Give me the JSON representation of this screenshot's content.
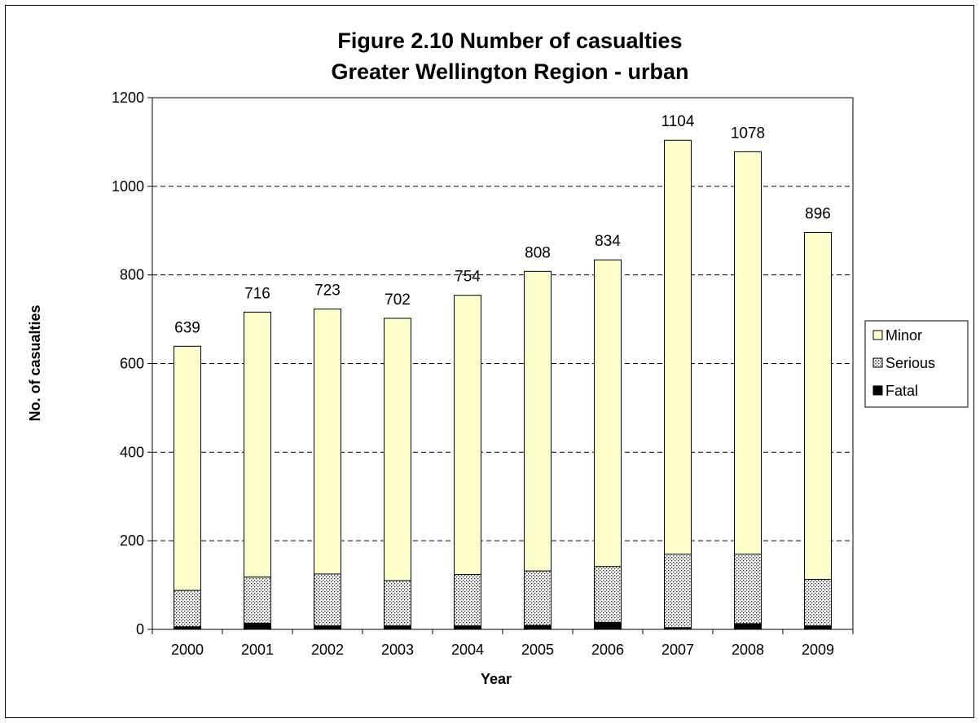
{
  "chart_data": {
    "type": "bar",
    "stacked": true,
    "title": "Figure 2.10 Number of casualties",
    "subtitle": "Greater Wellington Region - urban",
    "xlabel": "Year",
    "ylabel": "No. of casualties",
    "ylim": [
      0,
      1200
    ],
    "yticks": [
      "0",
      "200",
      "400",
      "600",
      "800",
      "1000",
      "1200"
    ],
    "grid": "horizontal dashed",
    "legend_position": "right",
    "categories": [
      "2000",
      "2001",
      "2002",
      "2003",
      "2004",
      "2005",
      "2006",
      "2007",
      "2008",
      "2009"
    ],
    "series": [
      {
        "name": "Fatal",
        "color": "#000000",
        "pattern": "solid",
        "values": [
          6,
          14,
          8,
          8,
          8,
          9,
          16,
          4,
          13,
          8
        ]
      },
      {
        "name": "Serious",
        "color": "#c8c8c8",
        "pattern": "dotted",
        "values": [
          82,
          104,
          117,
          102,
          116,
          123,
          126,
          166,
          157,
          105
        ]
      },
      {
        "name": "Minor",
        "color": "#ffffcc",
        "pattern": "solid",
        "values": [
          551,
          598,
          598,
          592,
          630,
          676,
          692,
          934,
          908,
          783
        ]
      }
    ],
    "totals": [
      "639",
      "716",
      "723",
      "702",
      "754",
      "808",
      "834",
      "1104",
      "1078",
      "896"
    ],
    "legend_order": [
      "Minor",
      "Serious",
      "Fatal"
    ]
  }
}
